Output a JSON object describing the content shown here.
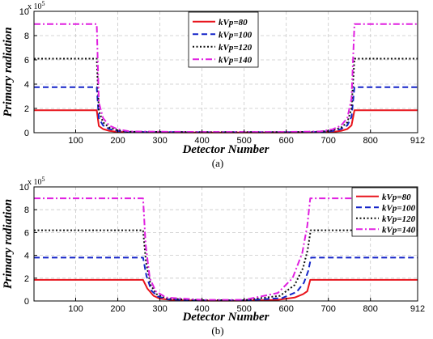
{
  "chart_data": [
    {
      "type": "line",
      "panel_label": "(a)",
      "xlabel": "Detector Number",
      "ylabel": "Primary radiation",
      "y_exponent_label": "x 10",
      "y_exponent_power": "5",
      "xlim": [
        1,
        912
      ],
      "ylim": [
        0,
        10
      ],
      "xticks": [
        100,
        200,
        300,
        400,
        500,
        600,
        700,
        800,
        912
      ],
      "yticks": [
        0,
        2,
        4,
        6,
        8,
        10
      ],
      "grid": true,
      "legend_position": "top-center",
      "series": [
        {
          "name": "kVp=80",
          "color": "#e8141c",
          "dash": "solid",
          "x": [
            1,
            150,
            155,
            165,
            180,
            200,
            230,
            400,
            600,
            680,
            710,
            730,
            745,
            755,
            762,
            912
          ],
          "y": [
            1.85,
            1.85,
            0.55,
            0.3,
            0.15,
            0.07,
            0.03,
            0.02,
            0.02,
            0.03,
            0.07,
            0.15,
            0.3,
            0.6,
            1.85,
            1.85
          ]
        },
        {
          "name": "kVp=100",
          "color": "#1424c8",
          "dash": "dashed",
          "x": [
            1,
            150,
            155,
            165,
            180,
            200,
            230,
            400,
            600,
            680,
            710,
            730,
            745,
            755,
            762,
            912
          ],
          "y": [
            3.75,
            3.75,
            1.2,
            0.6,
            0.3,
            0.14,
            0.06,
            0.04,
            0.04,
            0.06,
            0.14,
            0.3,
            0.6,
            1.3,
            3.75,
            3.75
          ]
        },
        {
          "name": "kVp=120",
          "color": "#111111",
          "dash": "dotted",
          "x": [
            1,
            150,
            155,
            165,
            180,
            200,
            230,
            400,
            600,
            680,
            710,
            730,
            745,
            755,
            762,
            912
          ],
          "y": [
            6.1,
            6.1,
            1.8,
            0.85,
            0.42,
            0.2,
            0.08,
            0.05,
            0.05,
            0.08,
            0.2,
            0.42,
            0.85,
            2.0,
            6.1,
            6.1
          ]
        },
        {
          "name": "kVp=140",
          "color": "#e020e0",
          "dash": "dashdot",
          "x": [
            1,
            150,
            155,
            165,
            180,
            200,
            230,
            400,
            600,
            680,
            710,
            730,
            745,
            755,
            762,
            912
          ],
          "y": [
            8.95,
            8.95,
            2.5,
            1.2,
            0.58,
            0.28,
            0.1,
            0.06,
            0.06,
            0.1,
            0.28,
            0.58,
            1.2,
            2.8,
            8.95,
            8.95
          ]
        }
      ]
    },
    {
      "type": "line",
      "panel_label": "(b)",
      "xlabel": "Detector Number",
      "ylabel": "Primary radiation",
      "y_exponent_label": "x 10",
      "y_exponent_power": "5",
      "xlim": [
        1,
        912
      ],
      "ylim": [
        0,
        10
      ],
      "xticks": [
        100,
        200,
        300,
        400,
        500,
        600,
        700,
        800,
        912
      ],
      "yticks": [
        0,
        2,
        4,
        6,
        8,
        10
      ],
      "grid": true,
      "legend_position": "top-right",
      "series": [
        {
          "name": "kVp=80",
          "color": "#e8141c",
          "dash": "solid",
          "x": [
            1,
            260,
            270,
            285,
            300,
            330,
            400,
            500,
            580,
            620,
            640,
            650,
            657,
            912
          ],
          "y": [
            1.85,
            1.85,
            1.1,
            0.45,
            0.2,
            0.08,
            0.03,
            0.03,
            0.1,
            0.3,
            0.6,
            0.85,
            1.85,
            1.85
          ]
        },
        {
          "name": "kVp=100",
          "color": "#1424c8",
          "dash": "dashed",
          "x": [
            1,
            260,
            268,
            280,
            295,
            320,
            400,
            500,
            590,
            625,
            642,
            652,
            659,
            912
          ],
          "y": [
            3.8,
            3.8,
            2.2,
            0.9,
            0.4,
            0.14,
            0.05,
            0.05,
            0.25,
            0.8,
            1.6,
            2.6,
            3.8,
            3.8
          ]
        },
        {
          "name": "kVp=120",
          "color": "#111111",
          "dash": "dotted",
          "x": [
            1,
            260,
            267,
            278,
            292,
            318,
            400,
            500,
            585,
            620,
            640,
            651,
            658,
            912
          ],
          "y": [
            6.2,
            6.2,
            3.4,
            1.4,
            0.6,
            0.2,
            0.07,
            0.07,
            0.45,
            1.4,
            2.9,
            4.5,
            6.2,
            6.2
          ]
        },
        {
          "name": "kVp=140",
          "color": "#e020e0",
          "dash": "dashdot",
          "x": [
            1,
            260,
            266,
            276,
            290,
            315,
            400,
            500,
            580,
            615,
            638,
            650,
            657,
            912
          ],
          "y": [
            9.0,
            9.0,
            5.0,
            2.0,
            0.85,
            0.3,
            0.1,
            0.1,
            0.7,
            2.0,
            4.2,
            6.6,
            9.0,
            9.0
          ]
        }
      ]
    }
  ]
}
